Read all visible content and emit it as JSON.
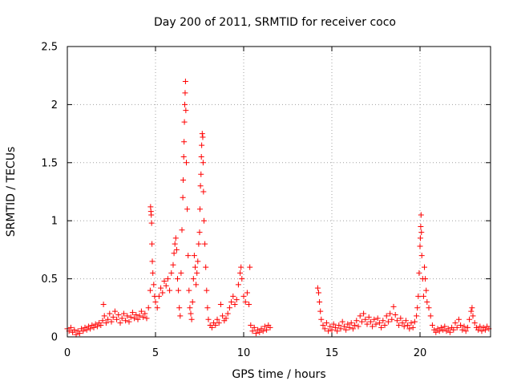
{
  "chart_data": {
    "type": "scatter",
    "title": "Day 200 of 2011, SRMTID for receiver coco",
    "xlabel": "GPS time / hours",
    "ylabel": "SRMTID / TECUs",
    "xlim": [
      0,
      24
    ],
    "ylim": [
      0,
      2.5
    ],
    "xticks": [
      0,
      5,
      10,
      15,
      20
    ],
    "xtick_labels": [
      "0",
      "5",
      "10",
      "15",
      "20"
    ],
    "yticks": [
      0,
      0.5,
      1,
      1.5,
      2,
      2.5
    ],
    "ytick_labels": [
      "0",
      "0.5",
      "1",
      "1.5",
      "2",
      "2.5"
    ],
    "grid": true,
    "marker": "+",
    "color": "#ff0000",
    "series": [
      {
        "name": "SRMTID",
        "points": [
          [
            0.0,
            0.07
          ],
          [
            0.1,
            0.05
          ],
          [
            0.2,
            0.08
          ],
          [
            0.3,
            0.04
          ],
          [
            0.4,
            0.06
          ],
          [
            0.5,
            0.02
          ],
          [
            0.6,
            0.05
          ],
          [
            0.7,
            0.03
          ],
          [
            0.8,
            0.07
          ],
          [
            0.9,
            0.05
          ],
          [
            1.0,
            0.08
          ],
          [
            1.1,
            0.06
          ],
          [
            1.2,
            0.09
          ],
          [
            1.3,
            0.07
          ],
          [
            1.4,
            0.1
          ],
          [
            1.5,
            0.08
          ],
          [
            1.6,
            0.11
          ],
          [
            1.7,
            0.09
          ],
          [
            1.8,
            0.12
          ],
          [
            1.9,
            0.1
          ],
          [
            2.0,
            0.14
          ],
          [
            2.05,
            0.28
          ],
          [
            2.1,
            0.18
          ],
          [
            2.2,
            0.12
          ],
          [
            2.3,
            0.15
          ],
          [
            2.4,
            0.2
          ],
          [
            2.5,
            0.13
          ],
          [
            2.6,
            0.17
          ],
          [
            2.7,
            0.22
          ],
          [
            2.8,
            0.15
          ],
          [
            2.9,
            0.19
          ],
          [
            3.0,
            0.12
          ],
          [
            3.1,
            0.16
          ],
          [
            3.2,
            0.2
          ],
          [
            3.3,
            0.14
          ],
          [
            3.4,
            0.18
          ],
          [
            3.5,
            0.13
          ],
          [
            3.6,
            0.17
          ],
          [
            3.7,
            0.21
          ],
          [
            3.8,
            0.16
          ],
          [
            3.9,
            0.19
          ],
          [
            4.0,
            0.15
          ],
          [
            4.1,
            0.18
          ],
          [
            4.2,
            0.22
          ],
          [
            4.3,
            0.17
          ],
          [
            4.4,
            0.2
          ],
          [
            4.5,
            0.16
          ],
          [
            4.6,
            0.25
          ],
          [
            4.7,
            0.4
          ],
          [
            4.72,
            1.12
          ],
          [
            4.74,
            1.08
          ],
          [
            4.76,
            1.05
          ],
          [
            4.78,
            0.98
          ],
          [
            4.8,
            0.8
          ],
          [
            4.82,
            0.65
          ],
          [
            4.85,
            0.55
          ],
          [
            4.9,
            0.45
          ],
          [
            4.95,
            0.35
          ],
          [
            5.0,
            0.3
          ],
          [
            5.1,
            0.25
          ],
          [
            5.2,
            0.35
          ],
          [
            5.3,
            0.42
          ],
          [
            5.4,
            0.38
          ],
          [
            5.5,
            0.48
          ],
          [
            5.6,
            0.44
          ],
          [
            5.7,
            0.5
          ],
          [
            5.8,
            0.4
          ],
          [
            5.9,
            0.55
          ],
          [
            6.0,
            0.62
          ],
          [
            6.05,
            0.72
          ],
          [
            6.1,
            0.8
          ],
          [
            6.15,
            0.85
          ],
          [
            6.2,
            0.75
          ],
          [
            6.25,
            0.5
          ],
          [
            6.3,
            0.4
          ],
          [
            6.35,
            0.25
          ],
          [
            6.4,
            0.18
          ],
          [
            6.45,
            0.55
          ],
          [
            6.5,
            0.92
          ],
          [
            6.55,
            1.2
          ],
          [
            6.57,
            1.35
          ],
          [
            6.6,
            1.55
          ],
          [
            6.62,
            1.68
          ],
          [
            6.64,
            1.85
          ],
          [
            6.66,
            2.0
          ],
          [
            6.68,
            2.1
          ],
          [
            6.7,
            2.2
          ],
          [
            6.72,
            1.95
          ],
          [
            6.75,
            1.5
          ],
          [
            6.8,
            1.1
          ],
          [
            6.85,
            0.7
          ],
          [
            6.9,
            0.4
          ],
          [
            6.95,
            0.25
          ],
          [
            7.0,
            0.2
          ],
          [
            7.05,
            0.15
          ],
          [
            7.1,
            0.3
          ],
          [
            7.15,
            0.5
          ],
          [
            7.2,
            0.7
          ],
          [
            7.25,
            0.6
          ],
          [
            7.3,
            0.45
          ],
          [
            7.35,
            0.55
          ],
          [
            7.4,
            0.65
          ],
          [
            7.45,
            0.8
          ],
          [
            7.5,
            0.9
          ],
          [
            7.52,
            1.1
          ],
          [
            7.55,
            1.3
          ],
          [
            7.58,
            1.4
          ],
          [
            7.6,
            1.55
          ],
          [
            7.62,
            1.65
          ],
          [
            7.65,
            1.75
          ],
          [
            7.68,
            1.72
          ],
          [
            7.7,
            1.5
          ],
          [
            7.72,
            1.25
          ],
          [
            7.75,
            1.0
          ],
          [
            7.8,
            0.8
          ],
          [
            7.85,
            0.6
          ],
          [
            7.9,
            0.4
          ],
          [
            7.95,
            0.25
          ],
          [
            8.0,
            0.15
          ],
          [
            8.1,
            0.1
          ],
          [
            8.2,
            0.08
          ],
          [
            8.3,
            0.12
          ],
          [
            8.4,
            0.1
          ],
          [
            8.5,
            0.15
          ],
          [
            8.6,
            0.12
          ],
          [
            8.7,
            0.28
          ],
          [
            8.8,
            0.18
          ],
          [
            8.9,
            0.14
          ],
          [
            9.0,
            0.16
          ],
          [
            9.1,
            0.2
          ],
          [
            9.2,
            0.25
          ],
          [
            9.3,
            0.3
          ],
          [
            9.4,
            0.35
          ],
          [
            9.5,
            0.28
          ],
          [
            9.6,
            0.32
          ],
          [
            9.7,
            0.45
          ],
          [
            9.8,
            0.55
          ],
          [
            9.85,
            0.6
          ],
          [
            9.9,
            0.5
          ],
          [
            10.0,
            0.35
          ],
          [
            10.1,
            0.3
          ],
          [
            10.2,
            0.38
          ],
          [
            10.3,
            0.28
          ],
          [
            10.35,
            0.6
          ],
          [
            10.4,
            0.1
          ],
          [
            10.5,
            0.05
          ],
          [
            10.6,
            0.08
          ],
          [
            10.7,
            0.03
          ],
          [
            10.8,
            0.06
          ],
          [
            10.9,
            0.04
          ],
          [
            11.0,
            0.07
          ],
          [
            11.1,
            0.05
          ],
          [
            11.2,
            0.09
          ],
          [
            11.3,
            0.06
          ],
          [
            11.4,
            0.1
          ],
          [
            11.5,
            0.08
          ],
          [
            14.2,
            0.42
          ],
          [
            14.25,
            0.38
          ],
          [
            14.3,
            0.3
          ],
          [
            14.35,
            0.22
          ],
          [
            14.4,
            0.15
          ],
          [
            14.5,
            0.1
          ],
          [
            14.6,
            0.07
          ],
          [
            14.7,
            0.12
          ],
          [
            14.8,
            0.05
          ],
          [
            14.9,
            0.09
          ],
          [
            15.0,
            0.06
          ],
          [
            15.1,
            0.11
          ],
          [
            15.2,
            0.08
          ],
          [
            15.3,
            0.05
          ],
          [
            15.4,
            0.1
          ],
          [
            15.5,
            0.07
          ],
          [
            15.6,
            0.13
          ],
          [
            15.7,
            0.09
          ],
          [
            15.8,
            0.06
          ],
          [
            15.9,
            0.11
          ],
          [
            16.0,
            0.08
          ],
          [
            16.1,
            0.12
          ],
          [
            16.2,
            0.07
          ],
          [
            16.3,
            0.1
          ],
          [
            16.4,
            0.14
          ],
          [
            16.5,
            0.09
          ],
          [
            16.6,
            0.18
          ],
          [
            16.7,
            0.13
          ],
          [
            16.8,
            0.2
          ],
          [
            16.9,
            0.15
          ],
          [
            17.0,
            0.11
          ],
          [
            17.1,
            0.17
          ],
          [
            17.2,
            0.13
          ],
          [
            17.3,
            0.09
          ],
          [
            17.4,
            0.15
          ],
          [
            17.5,
            0.11
          ],
          [
            17.6,
            0.16
          ],
          [
            17.7,
            0.12
          ],
          [
            17.8,
            0.08
          ],
          [
            17.9,
            0.14
          ],
          [
            18.0,
            0.1
          ],
          [
            18.1,
            0.18
          ],
          [
            18.2,
            0.13
          ],
          [
            18.3,
            0.2
          ],
          [
            18.4,
            0.15
          ],
          [
            18.5,
            0.26
          ],
          [
            18.6,
            0.19
          ],
          [
            18.7,
            0.14
          ],
          [
            18.8,
            0.1
          ],
          [
            18.9,
            0.16
          ],
          [
            19.0,
            0.12
          ],
          [
            19.1,
            0.09
          ],
          [
            19.2,
            0.14
          ],
          [
            19.3,
            0.1
          ],
          [
            19.4,
            0.07
          ],
          [
            19.5,
            0.12
          ],
          [
            19.6,
            0.08
          ],
          [
            19.7,
            0.13
          ],
          [
            19.8,
            0.18
          ],
          [
            19.85,
            0.25
          ],
          [
            19.9,
            0.35
          ],
          [
            19.95,
            0.55
          ],
          [
            20.0,
            0.78
          ],
          [
            20.02,
            0.85
          ],
          [
            20.04,
            0.95
          ],
          [
            20.06,
            1.05
          ],
          [
            20.08,
            0.9
          ],
          [
            20.1,
            0.7
          ],
          [
            20.15,
            0.5
          ],
          [
            20.2,
            0.35
          ],
          [
            20.25,
            0.6
          ],
          [
            20.3,
            0.5
          ],
          [
            20.35,
            0.4
          ],
          [
            20.4,
            0.3
          ],
          [
            20.5,
            0.25
          ],
          [
            20.6,
            0.18
          ],
          [
            20.7,
            0.1
          ],
          [
            20.8,
            0.06
          ],
          [
            20.9,
            0.04
          ],
          [
            21.0,
            0.07
          ],
          [
            21.1,
            0.05
          ],
          [
            21.2,
            0.08
          ],
          [
            21.3,
            0.06
          ],
          [
            21.4,
            0.09
          ],
          [
            21.5,
            0.05
          ],
          [
            21.6,
            0.07
          ],
          [
            21.7,
            0.04
          ],
          [
            21.8,
            0.08
          ],
          [
            21.9,
            0.06
          ],
          [
            22.0,
            0.12
          ],
          [
            22.1,
            0.08
          ],
          [
            22.2,
            0.15
          ],
          [
            22.3,
            0.1
          ],
          [
            22.4,
            0.06
          ],
          [
            22.5,
            0.09
          ],
          [
            22.6,
            0.05
          ],
          [
            22.7,
            0.08
          ],
          [
            22.8,
            0.15
          ],
          [
            22.9,
            0.22
          ],
          [
            22.95,
            0.25
          ],
          [
            23.0,
            0.18
          ],
          [
            23.1,
            0.12
          ],
          [
            23.2,
            0.08
          ],
          [
            23.3,
            0.06
          ],
          [
            23.4,
            0.09
          ],
          [
            23.5,
            0.05
          ],
          [
            23.6,
            0.08
          ],
          [
            23.7,
            0.06
          ],
          [
            23.8,
            0.09
          ],
          [
            23.9,
            0.07
          ]
        ]
      }
    ]
  }
}
